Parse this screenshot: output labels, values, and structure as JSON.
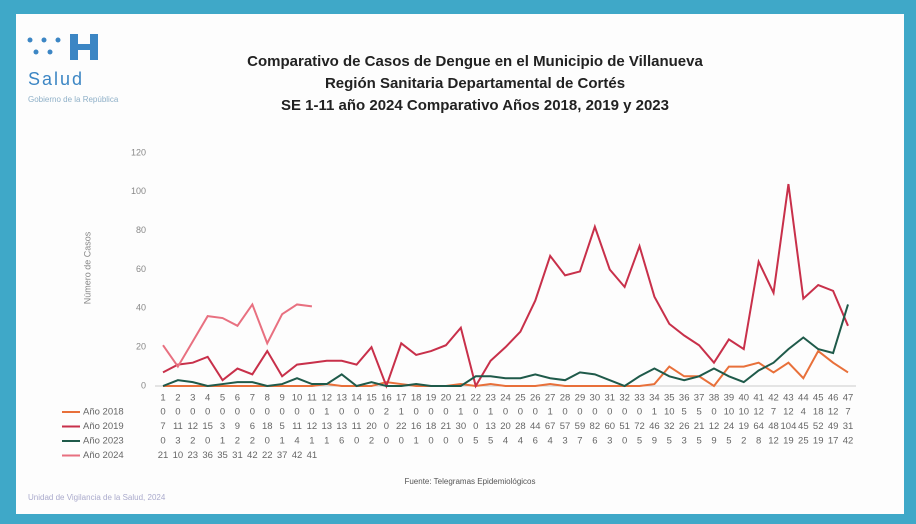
{
  "brand": {
    "name": "Salud",
    "subtitle": "Gobierno de la República"
  },
  "footer": {
    "source": "Fuente: Telegramas Epidemiológicos",
    "unit": "Unidad de Vigilancia de la Salud, 2024"
  },
  "chart_data": {
    "type": "line",
    "title": [
      "Comparativo de Casos de Dengue en el Municipio de Villanueva",
      "Región Sanitaria Departamental de Cortés",
      "SE 1-11 año 2024 Comparativo Años 2018, 2019 y 2023"
    ],
    "y_label": "Número de Casos",
    "categories": [
      "1",
      "2",
      "3",
      "4",
      "5",
      "6",
      "7",
      "8",
      "9",
      "10",
      "11",
      "12",
      "13",
      "14",
      "15",
      "16",
      "17",
      "18",
      "19",
      "20",
      "21",
      "22",
      "23",
      "24",
      "25",
      "26",
      "27",
      "28",
      "29",
      "30",
      "31",
      "32",
      "33",
      "34",
      "35",
      "36",
      "37",
      "38",
      "39",
      "40",
      "41",
      "42",
      "43",
      "44",
      "45",
      "46",
      "47"
    ],
    "ylim": [
      0,
      120
    ],
    "yticks": [
      0,
      20,
      40,
      60,
      80,
      100,
      120
    ],
    "series": [
      {
        "name": "Año 2018",
        "color": "#e8703a",
        "values": [
          0,
          0,
          0,
          0,
          0,
          0,
          0,
          0,
          0,
          0,
          0,
          1,
          0,
          0,
          0,
          2,
          1,
          0,
          0,
          0,
          1,
          0,
          1,
          0,
          0,
          0,
          1,
          0,
          0,
          0,
          0,
          0,
          0,
          1,
          10,
          5,
          5,
          0,
          10,
          10,
          12,
          7,
          12,
          4,
          18,
          12,
          7
        ]
      },
      {
        "name": "Año 2019",
        "color": "#c8304a",
        "values": [
          7,
          11,
          12,
          15,
          3,
          9,
          6,
          18,
          5,
          11,
          12,
          13,
          13,
          11,
          20,
          0,
          22,
          16,
          18,
          21,
          30,
          0,
          13,
          20,
          28,
          44,
          67,
          57,
          59,
          82,
          60,
          51,
          72,
          46,
          32,
          26,
          21,
          12,
          24,
          19,
          64,
          48,
          104,
          45,
          52,
          49,
          31
        ]
      },
      {
        "name": "Año 2023",
        "color": "#1f5a4a",
        "values": [
          0,
          3,
          2,
          0,
          1,
          2,
          2,
          0,
          1,
          4,
          1,
          1,
          6,
          0,
          2,
          0,
          0,
          1,
          0,
          0,
          0,
          5,
          5,
          4,
          4,
          6,
          4,
          3,
          7,
          6,
          3,
          0,
          5,
          9,
          5,
          3,
          5,
          9,
          5,
          2,
          8,
          12,
          19,
          25,
          19,
          17,
          42
        ]
      },
      {
        "name": "Año 2024",
        "color": "#e87080",
        "values": [
          21,
          10,
          23,
          36,
          35,
          31,
          42,
          22,
          37,
          42,
          41,
          null,
          null,
          null,
          null,
          null,
          null,
          null,
          null,
          null,
          null,
          null,
          null,
          null,
          null,
          null,
          null,
          null,
          null,
          null,
          null,
          null,
          null,
          null,
          null,
          null,
          null,
          null,
          null,
          null,
          null,
          null,
          null,
          null,
          null,
          null,
          null
        ]
      }
    ]
  }
}
